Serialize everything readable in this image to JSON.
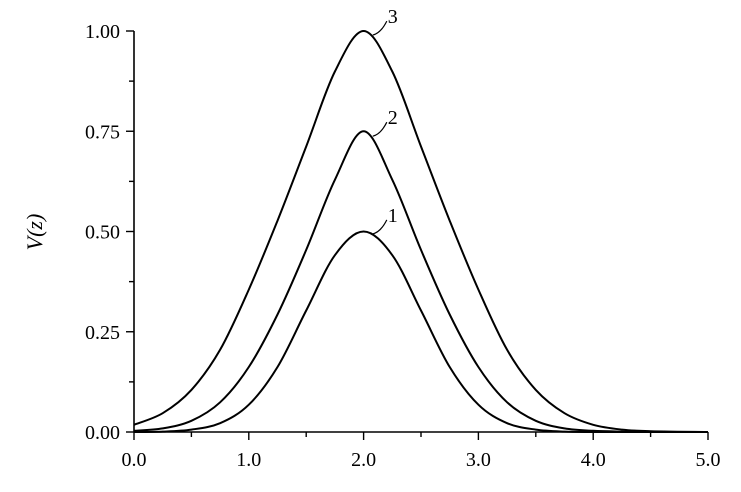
{
  "chart_data": {
    "type": "line",
    "title": "",
    "xlabel": "",
    "ylabel": "V(z)",
    "xlim": [
      0,
      5
    ],
    "ylim": [
      0,
      1
    ],
    "x_ticks": [
      "0.0",
      "1.0",
      "2.0",
      "3.0",
      "4.0",
      "5.0"
    ],
    "y_ticks": [
      "0.00",
      "0.25",
      "0.50",
      "0.75",
      "1.00"
    ],
    "grid": false,
    "legend": "none",
    "series": [
      {
        "label": "1",
        "x": [
          0,
          0.25,
          0.5,
          0.75,
          1.0,
          1.25,
          1.5,
          1.75,
          2.0,
          2.25,
          2.5,
          2.75,
          3.0,
          3.25,
          3.5,
          3.75,
          4.0,
          4.25,
          4.5,
          5.0
        ],
        "y": [
          0.0,
          0.001,
          0.006,
          0.022,
          0.068,
          0.162,
          0.303,
          0.441,
          0.5,
          0.441,
          0.303,
          0.162,
          0.068,
          0.022,
          0.006,
          0.001,
          0.0,
          0.0,
          0.0,
          0.0
        ]
      },
      {
        "label": "2",
        "x": [
          0,
          0.25,
          0.5,
          0.75,
          1.0,
          1.25,
          1.5,
          1.75,
          2.0,
          2.25,
          2.5,
          2.75,
          3.0,
          3.25,
          3.5,
          3.75,
          4.0,
          4.25,
          4.5,
          5.0
        ],
        "y": [
          0.003,
          0.009,
          0.028,
          0.074,
          0.162,
          0.293,
          0.454,
          0.629,
          0.75,
          0.629,
          0.454,
          0.293,
          0.162,
          0.074,
          0.028,
          0.009,
          0.003,
          0.001,
          0.0,
          0.0
        ]
      },
      {
        "label": "3",
        "x": [
          0,
          0.25,
          0.5,
          0.75,
          1.0,
          1.25,
          1.5,
          1.75,
          2.0,
          2.25,
          2.5,
          2.75,
          3.0,
          3.25,
          3.5,
          3.75,
          4.0,
          4.25,
          4.5,
          5.0
        ],
        "y": [
          0.018,
          0.047,
          0.105,
          0.205,
          0.355,
          0.527,
          0.712,
          0.899,
          1.0,
          0.899,
          0.712,
          0.527,
          0.355,
          0.205,
          0.105,
          0.047,
          0.018,
          0.006,
          0.002,
          0.0
        ]
      }
    ]
  }
}
